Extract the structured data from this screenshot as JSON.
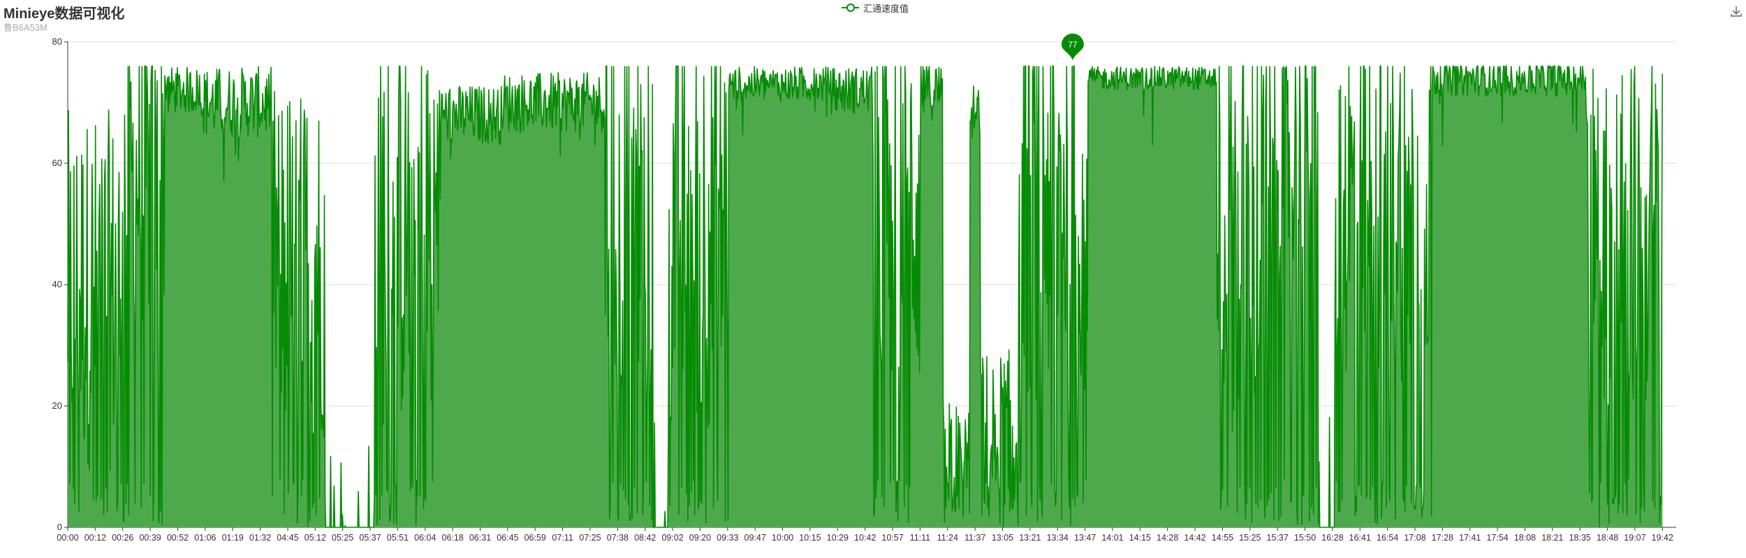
{
  "header": {
    "title": "Minieye数据可视化",
    "subtitle": "鲁B6A53M"
  },
  "legend": {
    "label": "汇通速度值"
  },
  "toolbox": {
    "icon": "download-icon"
  },
  "colors": {
    "line": "#068b05",
    "area": "#4ea94d",
    "grid": "#dcdcdc",
    "axis": "#333333"
  },
  "marker": {
    "value": "77",
    "time": "13:39"
  },
  "chart_data": {
    "type": "area",
    "title": "Minieye数据可视化",
    "subtitle": "鲁B6A53M",
    "series_name": "汇通速度值",
    "xlabel": "",
    "ylabel": "",
    "ylim": [
      0,
      80
    ],
    "yticks": [
      0,
      20,
      40,
      60,
      80
    ],
    "grid": true,
    "legend_position": "top-center",
    "x_ticks": [
      "00:00",
      "00:12",
      "00:26",
      "00:39",
      "00:52",
      "01:06",
      "01:19",
      "01:32",
      "04:45",
      "05:12",
      "05:25",
      "05:37",
      "05:51",
      "06:04",
      "06:18",
      "06:31",
      "06:45",
      "06:59",
      "07:11",
      "07:25",
      "07:38",
      "08:42",
      "09:02",
      "09:20",
      "09:33",
      "09:47",
      "10:00",
      "10:15",
      "10:29",
      "10:42",
      "10:57",
      "11:11",
      "11:24",
      "11:37",
      "13:05",
      "13:21",
      "13:34",
      "13:47",
      "14:01",
      "14:15",
      "14:28",
      "14:42",
      "14:55",
      "15:25",
      "15:37",
      "15:50",
      "16:28",
      "16:41",
      "16:54",
      "17:08",
      "17:28",
      "17:41",
      "17:54",
      "18:08",
      "18:21",
      "18:35",
      "18:48",
      "19:07",
      "19:42"
    ],
    "segments": [
      {
        "start": 0.0,
        "end": 5.0,
        "level": 30,
        "noise": 30,
        "mode": "spiky"
      },
      {
        "start": 5.0,
        "end": 9.0,
        "level": 50,
        "noise": 25,
        "mode": "spiky"
      },
      {
        "start": 9.0,
        "end": 12.5,
        "level": 72,
        "noise": 4,
        "mode": "steady"
      },
      {
        "start": 12.5,
        "end": 19.0,
        "level": 70,
        "noise": 6,
        "mode": "steady"
      },
      {
        "start": 19.0,
        "end": 24.0,
        "level": 35,
        "noise": 30,
        "mode": "spiky"
      },
      {
        "start": 24.0,
        "end": 28.5,
        "level": 0,
        "noise": 6,
        "mode": "sparse"
      },
      {
        "start": 28.5,
        "end": 34.5,
        "level": 40,
        "noise": 35,
        "mode": "spiky"
      },
      {
        "start": 34.5,
        "end": 40.5,
        "level": 68,
        "noise": 5,
        "mode": "steady"
      },
      {
        "start": 40.5,
        "end": 50.0,
        "level": 70,
        "noise": 5,
        "mode": "steady"
      },
      {
        "start": 50.0,
        "end": 54.5,
        "level": 40,
        "noise": 35,
        "mode": "spiky"
      },
      {
        "start": 54.5,
        "end": 56.0,
        "level": 0,
        "noise": 0,
        "mode": "sparse"
      },
      {
        "start": 56.0,
        "end": 61.5,
        "level": 40,
        "noise": 35,
        "mode": "spiky"
      },
      {
        "start": 61.5,
        "end": 71.0,
        "level": 73,
        "noise": 3,
        "mode": "steady"
      },
      {
        "start": 71.0,
        "end": 75.0,
        "level": 72,
        "noise": 4,
        "mode": "steady"
      },
      {
        "start": 75.0,
        "end": 79.5,
        "level": 45,
        "noise": 35,
        "mode": "spiky"
      },
      {
        "start": 79.5,
        "end": 81.5,
        "level": 72,
        "noise": 5,
        "mode": "steady"
      },
      {
        "start": 81.5,
        "end": 84.0,
        "level": 8,
        "noise": 10,
        "mode": "spiky"
      },
      {
        "start": 84.0,
        "end": 85.0,
        "level": 68,
        "noise": 5,
        "mode": "steady"
      },
      {
        "start": 85.0,
        "end": 88.5,
        "level": 10,
        "noise": 15,
        "mode": "spiky"
      },
      {
        "start": 88.5,
        "end": 95.0,
        "level": 45,
        "noise": 35,
        "mode": "spiky"
      },
      {
        "start": 95.0,
        "end": 107.0,
        "level": 74,
        "noise": 2,
        "mode": "steady"
      },
      {
        "start": 107.0,
        "end": 112.0,
        "level": 40,
        "noise": 35,
        "mode": "spiky"
      },
      {
        "start": 112.0,
        "end": 116.5,
        "level": 55,
        "noise": 20,
        "mode": "spiky"
      },
      {
        "start": 116.5,
        "end": 118.0,
        "level": 0,
        "noise": 0,
        "mode": "sparse"
      },
      {
        "start": 118.0,
        "end": 127.0,
        "level": 45,
        "noise": 30,
        "mode": "spiky"
      },
      {
        "start": 127.0,
        "end": 141.5,
        "level": 74,
        "noise": 3,
        "mode": "steady"
      },
      {
        "start": 141.5,
        "end": 148.5,
        "level": 40,
        "noise": 30,
        "mode": "spiky"
      }
    ],
    "x_range": [
      0,
      148.5
    ]
  }
}
